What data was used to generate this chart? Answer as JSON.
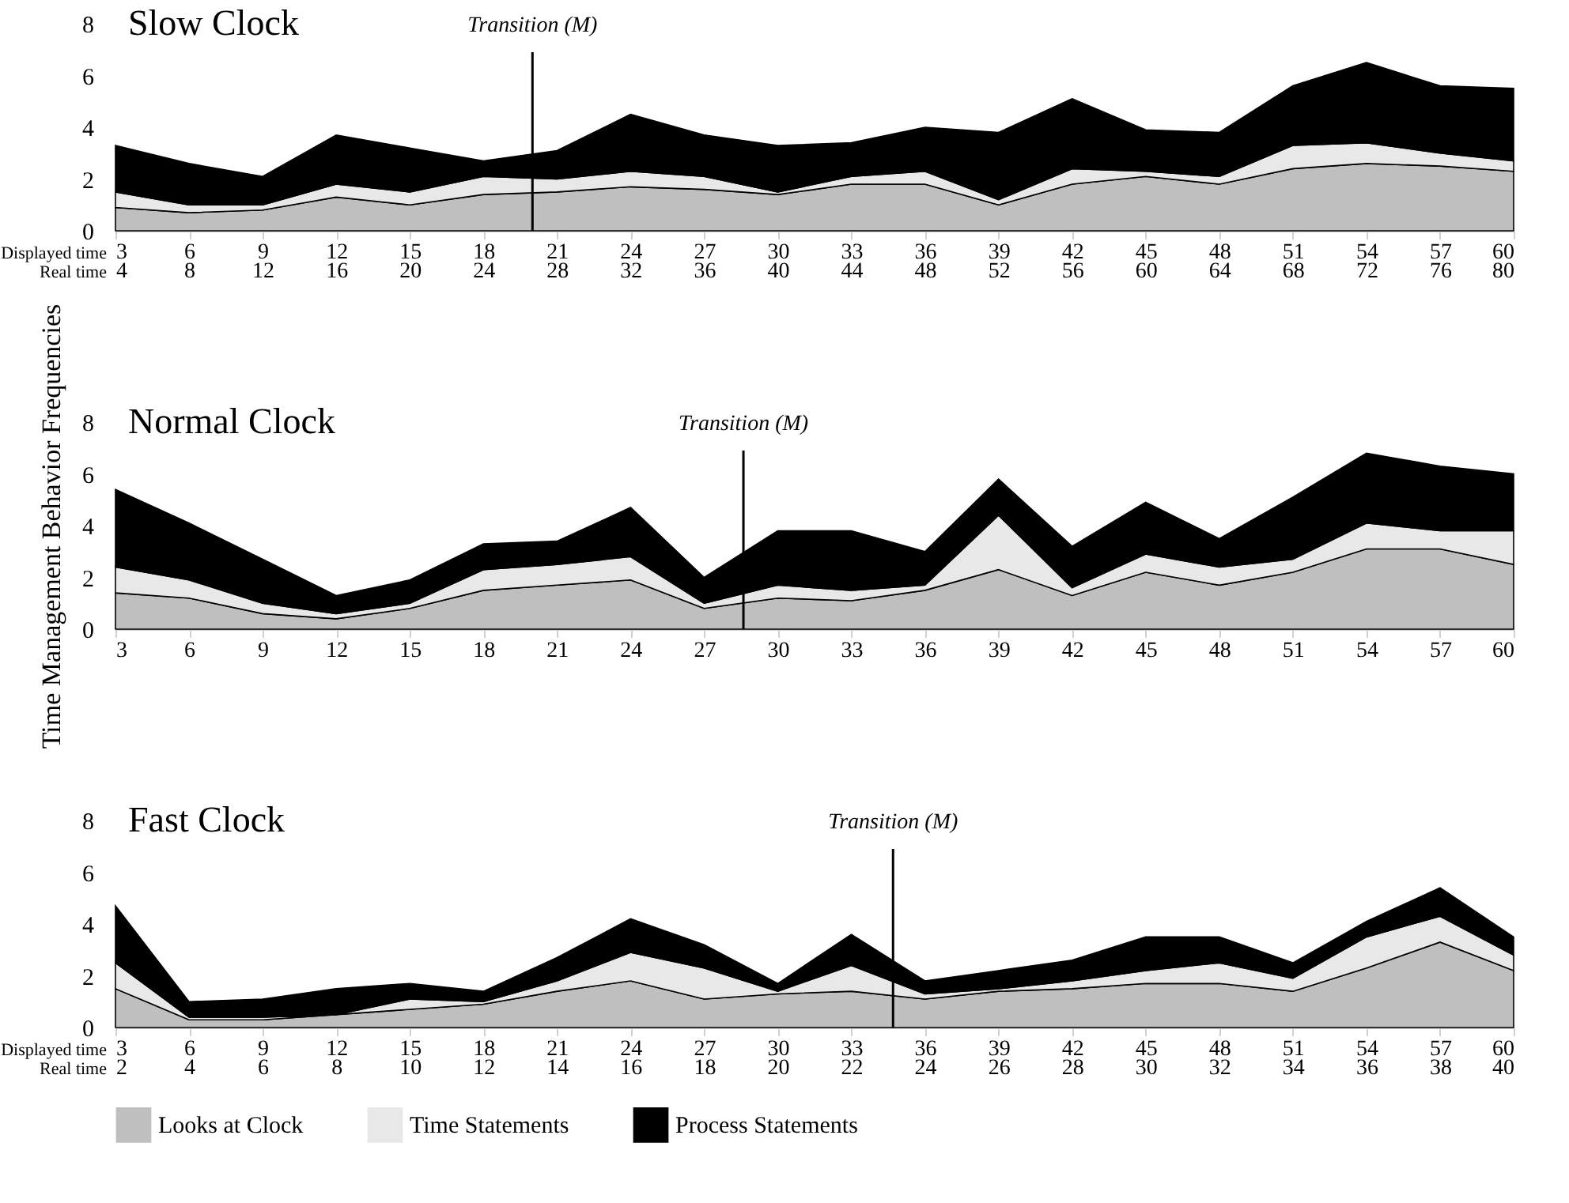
{
  "chart_data": [
    {
      "type": "area",
      "title": "Slow Clock",
      "stacked": true,
      "x": [
        3,
        6,
        9,
        12,
        15,
        18,
        21,
        24,
        27,
        30,
        33,
        36,
        39,
        42,
        45,
        48,
        51,
        54,
        57,
        60
      ],
      "xlim": [
        3,
        60
      ],
      "xticks": [
        3,
        6,
        9,
        12,
        15,
        18,
        21,
        24,
        27,
        30,
        33,
        36,
        39,
        42,
        45,
        48,
        51,
        54,
        57,
        60
      ],
      "xlabel": "Displayed time",
      "x2label": "Real time",
      "x2lim": [
        4,
        80
      ],
      "x2ticks": [
        4,
        8,
        12,
        16,
        20,
        24,
        28,
        32,
        36,
        40,
        44,
        48,
        52,
        56,
        60,
        64,
        68,
        72,
        76,
        80
      ],
      "ylim": [
        0,
        8
      ],
      "yticks": [
        0,
        2,
        4,
        6,
        8
      ],
      "ref_lines": [
        {
          "axis": "x",
          "value": 20,
          "label": "Transition (M)"
        }
      ],
      "series": [
        {
          "color": "#bfbfbf",
          "values": [
            0.9,
            0.7,
            0.8,
            1.3,
            1.0,
            1.4,
            1.5,
            1.7,
            1.6,
            1.4,
            1.8,
            1.8,
            1.0,
            1.8,
            2.1,
            1.8,
            2.4,
            2.6,
            2.5,
            2.3
          ]
        },
        {
          "color": "#e8e8e8",
          "values": [
            0.6,
            0.3,
            0.2,
            0.5,
            0.5,
            0.7,
            0.5,
            0.6,
            0.5,
            0.1,
            0.3,
            0.5,
            0.2,
            0.6,
            0.2,
            0.3,
            0.9,
            0.8,
            0.5,
            0.4
          ]
        },
        {
          "color": "#000000",
          "values": [
            1.8,
            1.6,
            1.1,
            1.9,
            1.7,
            0.6,
            1.1,
            2.2,
            1.6,
            1.8,
            1.3,
            1.7,
            2.6,
            2.7,
            1.6,
            1.7,
            2.3,
            3.1,
            2.6,
            2.8
          ]
        }
      ]
    },
    {
      "type": "area",
      "title": "Normal Clock",
      "stacked": true,
      "ylabel": "Time Management Behavior Frequencies",
      "x": [
        3,
        6,
        9,
        12,
        15,
        18,
        21,
        24,
        27,
        30,
        33,
        36,
        39,
        42,
        45,
        48,
        51,
        54,
        57,
        60
      ],
      "xlim": [
        3,
        60
      ],
      "xticks": [
        3,
        6,
        9,
        12,
        15,
        18,
        21,
        24,
        27,
        30,
        33,
        36,
        39,
        42,
        45,
        48,
        51,
        54,
        57,
        60
      ],
      "ylim": [
        0,
        8
      ],
      "yticks": [
        0,
        2,
        4,
        6,
        8
      ],
      "ref_lines": [
        {
          "axis": "x",
          "value": 28.6,
          "label": "Transition (M)"
        }
      ],
      "series": [
        {
          "color": "#bfbfbf",
          "values": [
            1.4,
            1.2,
            0.6,
            0.4,
            0.8,
            1.5,
            1.7,
            1.9,
            0.8,
            1.2,
            1.1,
            1.5,
            2.3,
            1.3,
            2.2,
            1.7,
            2.2,
            3.1,
            3.1,
            2.5
          ]
        },
        {
          "color": "#e8e8e8",
          "values": [
            1.0,
            0.7,
            0.4,
            0.2,
            0.2,
            0.8,
            0.8,
            0.9,
            0.2,
            0.5,
            0.4,
            0.2,
            2.1,
            0.3,
            0.7,
            0.7,
            0.5,
            1.0,
            0.7,
            1.3
          ]
        },
        {
          "color": "#000000",
          "values": [
            3.0,
            2.2,
            1.7,
            0.7,
            0.9,
            1.0,
            0.9,
            1.9,
            1.0,
            2.1,
            2.3,
            1.3,
            1.4,
            1.6,
            2.0,
            1.1,
            2.4,
            2.7,
            2.5,
            2.2
          ]
        }
      ]
    },
    {
      "type": "area",
      "title": "Fast Clock",
      "stacked": true,
      "legend": "bottom",
      "x": [
        3,
        6,
        9,
        12,
        15,
        18,
        21,
        24,
        27,
        30,
        33,
        36,
        39,
        42,
        45,
        48,
        51,
        54,
        57,
        60
      ],
      "xlim": [
        3,
        60
      ],
      "xticks": [
        3,
        6,
        9,
        12,
        15,
        18,
        21,
        24,
        27,
        30,
        33,
        36,
        39,
        42,
        45,
        48,
        51,
        54,
        57,
        60
      ],
      "xlabel": "Displayed time",
      "x2label": "Real time",
      "x2lim": [
        2,
        40
      ],
      "x2ticks": [
        2,
        4,
        6,
        8,
        10,
        12,
        14,
        16,
        18,
        20,
        22,
        24,
        26,
        28,
        30,
        32,
        34,
        36,
        38,
        40
      ],
      "ylim": [
        0,
        8
      ],
      "yticks": [
        0,
        2,
        4,
        6,
        8
      ],
      "ref_lines": [
        {
          "axis": "x",
          "value": 34.7,
          "label": "Transition (M)"
        }
      ],
      "series": [
        {
          "name": "Looks at Clock",
          "color": "#bfbfbf",
          "values": [
            1.5,
            0.3,
            0.3,
            0.5,
            0.7,
            0.9,
            1.4,
            1.8,
            1.1,
            1.3,
            1.4,
            1.1,
            1.4,
            1.5,
            1.7,
            1.7,
            1.4,
            2.3,
            3.3,
            2.2
          ]
        },
        {
          "name": "Time Statements",
          "color": "#e8e8e8",
          "values": [
            1.0,
            0.1,
            0.1,
            0.0,
            0.4,
            0.1,
            0.4,
            1.1,
            1.2,
            0.1,
            1.0,
            0.2,
            0.1,
            0.3,
            0.5,
            0.8,
            0.5,
            1.2,
            1.0,
            0.6
          ]
        },
        {
          "name": "Process Statements",
          "color": "#000000",
          "values": [
            2.2,
            0.6,
            0.7,
            1.0,
            0.6,
            0.4,
            0.9,
            1.3,
            0.9,
            0.3,
            1.2,
            0.5,
            0.7,
            0.8,
            1.3,
            1.0,
            0.6,
            0.6,
            1.1,
            0.7
          ]
        }
      ]
    }
  ]
}
